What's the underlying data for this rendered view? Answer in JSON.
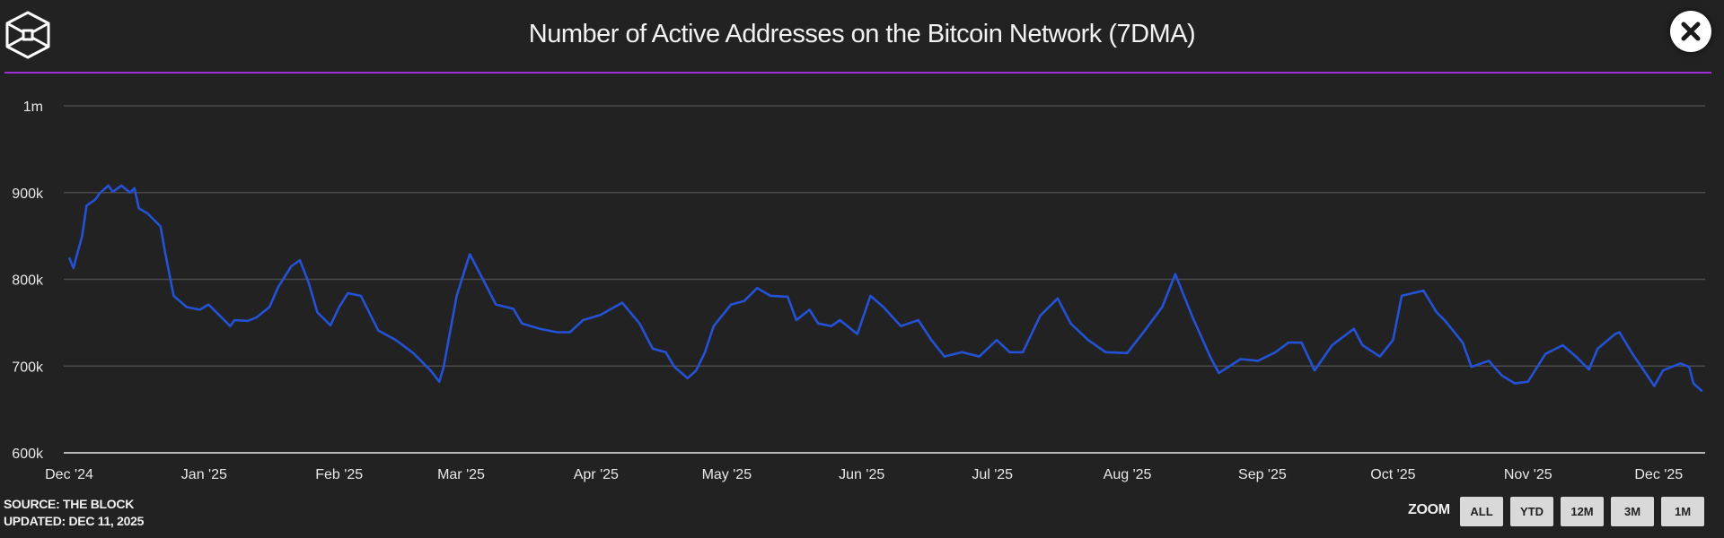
{
  "header": {
    "title": "Number of Active Addresses on the Bitcoin Network (7DMA)",
    "logo_icon": "the-block-cube-logo",
    "close_icon": "close-x-icon"
  },
  "footer": {
    "source": "SOURCE: THE BLOCK",
    "updated": "UPDATED: DEC 11, 2025",
    "zoom_label": "ZOOM",
    "zoom_buttons": [
      "ALL",
      "YTD",
      "12M",
      "3M",
      "1M"
    ]
  },
  "colors": {
    "background": "#222222",
    "line": "#2452d6",
    "divider": "#9a2fd4",
    "grid": "#4a4a4a"
  },
  "chart_data": {
    "type": "line",
    "title": "Number of Active Addresses on the Bitcoin Network (7DMA)",
    "xlabel": "",
    "ylabel": "",
    "ylim": [
      600000,
      1000000
    ],
    "yticks": [
      600000,
      700000,
      800000,
      900000,
      1000000
    ],
    "ytick_labels": [
      "600k",
      "700k",
      "800k",
      "900k",
      "1m"
    ],
    "xticks": [
      "2024-12-01",
      "2025-01-01",
      "2025-02-01",
      "2025-03-01",
      "2025-04-01",
      "2025-05-01",
      "2025-06-01",
      "2025-07-01",
      "2025-08-01",
      "2025-09-01",
      "2025-10-01",
      "2025-11-01",
      "2025-12-01"
    ],
    "xtick_labels": [
      "Dec '24",
      "Jan '25",
      "Feb '25",
      "Mar '25",
      "Apr '25",
      "May '25",
      "Jun '25",
      "Jul '25",
      "Aug '25",
      "Sep '25",
      "Oct '25",
      "Nov '25",
      "Dec '25"
    ],
    "grid": true,
    "legend": "none",
    "series": [
      {
        "x": [
          "2024-12-01",
          "2024-12-02",
          "2024-12-03",
          "2024-12-04",
          "2024-12-05",
          "2024-12-07",
          "2024-12-08",
          "2024-12-10",
          "2024-12-11",
          "2024-12-13",
          "2024-12-15",
          "2024-12-16",
          "2024-12-17",
          "2024-12-19",
          "2024-12-22",
          "2024-12-23",
          "2024-12-25",
          "2024-12-28",
          "2024-12-31",
          "2025-01-02",
          "2025-01-05",
          "2025-01-07",
          "2025-01-08",
          "2025-01-11",
          "2025-01-13",
          "2025-01-16",
          "2025-01-18",
          "2025-01-21",
          "2025-01-23",
          "2025-01-25",
          "2025-01-27",
          "2025-01-30",
          "2025-02-01",
          "2025-02-03",
          "2025-02-06",
          "2025-02-10",
          "2025-02-14",
          "2025-02-18",
          "2025-02-22",
          "2025-02-24",
          "2025-02-25",
          "2025-02-28",
          "2025-03-03",
          "2025-03-06",
          "2025-03-09",
          "2025-03-13",
          "2025-03-15",
          "2025-03-19",
          "2025-03-23",
          "2025-03-26",
          "2025-03-29",
          "2025-04-02",
          "2025-04-07",
          "2025-04-11",
          "2025-04-14",
          "2025-04-17",
          "2025-04-19",
          "2025-04-22",
          "2025-04-24",
          "2025-04-26",
          "2025-04-28",
          "2025-05-02",
          "2025-05-05",
          "2025-05-08",
          "2025-05-11",
          "2025-05-15",
          "2025-05-17",
          "2025-05-20",
          "2025-05-22",
          "2025-05-25",
          "2025-05-27",
          "2025-05-31",
          "2025-06-03",
          "2025-06-06",
          "2025-06-10",
          "2025-06-14",
          "2025-06-17",
          "2025-06-20",
          "2025-06-24",
          "2025-06-28",
          "2025-07-02",
          "2025-07-05",
          "2025-07-08",
          "2025-07-12",
          "2025-07-16",
          "2025-07-19",
          "2025-07-23",
          "2025-07-27",
          "2025-08-01",
          "2025-08-05",
          "2025-08-09",
          "2025-08-12",
          "2025-08-16",
          "2025-08-20",
          "2025-08-22",
          "2025-08-27",
          "2025-08-31",
          "2025-09-04",
          "2025-09-07",
          "2025-09-10",
          "2025-09-13",
          "2025-09-17",
          "2025-09-22",
          "2025-09-24",
          "2025-09-28",
          "2025-10-01",
          "2025-10-03",
          "2025-10-08",
          "2025-10-11",
          "2025-10-13",
          "2025-10-17",
          "2025-10-19",
          "2025-10-23",
          "2025-10-26",
          "2025-10-29",
          "2025-11-01",
          "2025-11-05",
          "2025-11-09",
          "2025-11-12",
          "2025-11-15",
          "2025-11-17",
          "2025-11-21",
          "2025-11-22",
          "2025-11-25",
          "2025-11-28",
          "2025-11-30",
          "2025-12-02",
          "2025-12-06",
          "2025-12-08",
          "2025-12-09",
          "2025-12-11"
        ],
        "values": [
          825000,
          813000,
          832000,
          850000,
          885000,
          892000,
          899000,
          908000,
          901000,
          908000,
          900000,
          905000,
          882000,
          876000,
          861000,
          832000,
          781000,
          768000,
          765000,
          771000,
          756000,
          746000,
          753000,
          752000,
          756000,
          768000,
          791000,
          815000,
          822000,
          796000,
          762000,
          747000,
          768000,
          784000,
          781000,
          741000,
          730000,
          715000,
          695000,
          682000,
          699000,
          781000,
          829000,
          800000,
          771000,
          766000,
          749000,
          743000,
          739000,
          739000,
          753000,
          759000,
          773000,
          749000,
          720000,
          716000,
          699000,
          686000,
          695000,
          716000,
          746000,
          771000,
          775000,
          790000,
          781000,
          780000,
          753000,
          765000,
          749000,
          746000,
          753000,
          737000,
          781000,
          768000,
          746000,
          753000,
          730000,
          711000,
          716000,
          711000,
          730000,
          716000,
          716000,
          758000,
          778000,
          749000,
          730000,
          716000,
          715000,
          741000,
          768000,
          806000,
          756000,
          711000,
          692000,
          708000,
          706000,
          716000,
          727000,
          727000,
          695000,
          724000,
          743000,
          724000,
          711000,
          730000,
          781000,
          787000,
          762000,
          752000,
          727000,
          699000,
          706000,
          689000,
          680000,
          682000,
          714000,
          724000,
          711000,
          696000,
          720000,
          737000,
          739000,
          714000,
          692000,
          677000,
          695000,
          703000,
          699000,
          680000,
          671000
        ]
      }
    ]
  }
}
